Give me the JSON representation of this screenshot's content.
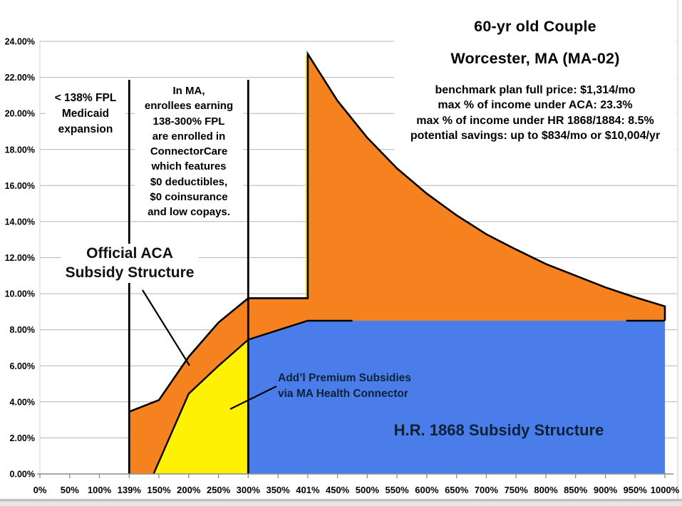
{
  "title": {
    "line1": "60-yr old Couple",
    "line2": "Worcester, MA (MA-02)",
    "details": [
      "benchmark plan full price: $1,314/mo",
      "max % of income under ACA: 23.3%",
      "max % of income under HR 1868/1884: 8.5%",
      "potential savings: up to $834/mo or $10,004/yr"
    ]
  },
  "annotations": {
    "medicaid_note": [
      "< 138% FPL",
      "Medicaid",
      "expansion"
    ],
    "connectorcare_note": [
      "In MA,",
      "enrollees earning",
      "138-300% FPL",
      "are enrolled in",
      "ConnectorCare",
      "which features",
      "$0 deductibles,",
      "$0 coinsurance",
      "and low copays."
    ],
    "aca_label": [
      "Official ACA",
      "Subsidy Structure"
    ],
    "addl_label": [
      "Add’l Premium Subsidies",
      "via MA Health Connector"
    ],
    "hr1868_label": "H.R. 1868 Subsidy Structure"
  },
  "chart_data": {
    "type": "area",
    "title": "60-yr old Couple, Worcester, MA (MA-02)",
    "x_axis": {
      "scale": "categorical",
      "ticks": [
        "0%",
        "50%",
        "100%",
        "139%",
        "150%",
        "200%",
        "250%",
        "300%",
        "350%",
        "401%",
        "450%",
        "500%",
        "550%",
        "600%",
        "650%",
        "700%",
        "750%",
        "800%",
        "850%",
        "900%",
        "950%",
        "1000%"
      ],
      "tick_values": [
        0,
        50,
        100,
        139,
        150,
        200,
        250,
        300,
        350,
        401,
        450,
        500,
        550,
        600,
        650,
        700,
        750,
        800,
        850,
        900,
        950,
        1000
      ]
    },
    "y_axis": {
      "min": 0,
      "max": 24,
      "step": 2,
      "tick_format": "0.00%",
      "grid": true
    },
    "series": [
      {
        "name": "Official ACA Subsidy Structure",
        "color": "#F5821F",
        "points": [
          [
            139,
            3.45
          ],
          [
            150,
            4.1
          ],
          [
            200,
            6.5
          ],
          [
            250,
            8.4
          ],
          [
            300,
            9.75
          ],
          [
            401,
            9.75
          ],
          [
            401,
            23.3
          ],
          [
            450,
            20.7
          ],
          [
            500,
            18.65
          ],
          [
            550,
            16.95
          ],
          [
            600,
            15.55
          ],
          [
            650,
            14.35
          ],
          [
            700,
            13.3
          ],
          [
            750,
            12.45
          ],
          [
            800,
            11.65
          ],
          [
            850,
            11.0
          ],
          [
            900,
            10.35
          ],
          [
            950,
            9.8
          ],
          [
            1000,
            9.3
          ]
        ]
      },
      {
        "name": "Add'l Premium Subsidies via MA Health Connector",
        "color": "#FFF104",
        "points": [
          [
            148,
            0
          ],
          [
            200,
            4.45
          ],
          [
            250,
            6.0
          ],
          [
            300,
            7.45
          ]
        ]
      },
      {
        "name": "H.R. 1868 Subsidy Structure",
        "color": "#4A7DEA",
        "points": [
          [
            300,
            7.45
          ],
          [
            401,
            8.5
          ],
          [
            1000,
            8.5
          ]
        ]
      }
    ],
    "reference_lines_fpl": [
      139,
      300
    ],
    "legend": "none"
  }
}
